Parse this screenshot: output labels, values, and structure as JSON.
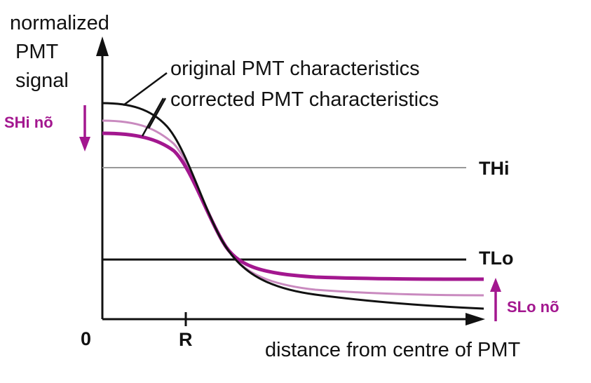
{
  "y_axis_label": [
    "normalized",
    "PMT",
    "signal"
  ],
  "x_axis_label": "distance from centre of PMT",
  "origin_label": "0",
  "r_label": "R",
  "legend": {
    "original": "original PMT characteristics",
    "corrected": "corrected PMT characteristics"
  },
  "thresholds": {
    "high": "THi",
    "low": "TLo"
  },
  "signal_arrows": {
    "high": "SHi nõ",
    "low": "SLo nõ"
  },
  "colors": {
    "original": "#111111",
    "corrected": "#a3178f",
    "corrected_light": "#c98abf",
    "threshold_high": "#999999",
    "threshold_low": "#111111"
  }
}
